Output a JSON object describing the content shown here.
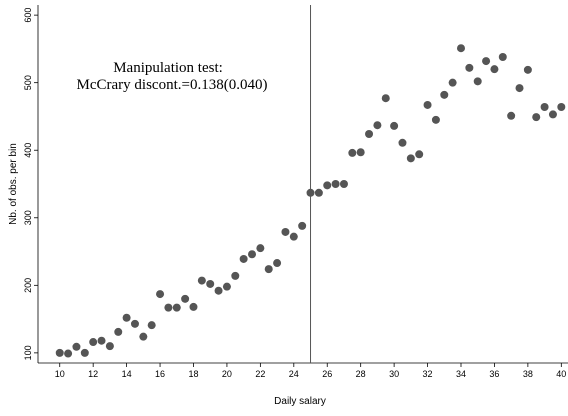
{
  "chart_data": {
    "type": "scatter",
    "x_label": "Daily salary",
    "y_label": "Nb. of obs. per bin",
    "annotation": [
      "Manipulation test:",
      "McCrary discont.=0.138(0.040)"
    ],
    "cutoff": 25,
    "color": "#555555",
    "x": [
      10,
      10.5,
      11,
      11.5,
      12,
      12.5,
      13,
      13.5,
      14,
      14.5,
      15,
      15.5,
      16,
      16.5,
      17,
      17.5,
      18,
      18.5,
      19,
      19.5,
      20,
      20.5,
      21,
      21.5,
      22,
      22.5,
      23,
      23.5,
      24,
      24.5,
      25,
      25.5,
      26,
      26.5,
      27,
      27.5,
      28,
      28.5,
      29,
      29.5,
      30,
      30.5,
      31,
      31.5,
      32,
      32.5,
      33,
      33.5,
      34,
      34.5,
      35,
      35.5,
      36,
      36.5,
      37,
      37.5,
      38,
      38.5,
      39,
      39.5,
      40
    ],
    "values": [
      100,
      99,
      109,
      100,
      116,
      118,
      110,
      131,
      152,
      143,
      124,
      141,
      187,
      167,
      167,
      180,
      168,
      207,
      202,
      192,
      198,
      214,
      239,
      246,
      255,
      224,
      233,
      279,
      272,
      288,
      337,
      337,
      348,
      350,
      350,
      396,
      397,
      424,
      437,
      477,
      436,
      411,
      388,
      394,
      467,
      445,
      482,
      500,
      551,
      522,
      502,
      532,
      520,
      538,
      451,
      492,
      519,
      449,
      464,
      453,
      464
    ],
    "xlim": [
      8.7,
      40.4
    ],
    "ylim": [
      85,
      615
    ],
    "xticks": [
      10,
      12,
      14,
      16,
      18,
      20,
      22,
      24,
      26,
      28,
      30,
      32,
      34,
      36,
      38,
      40
    ],
    "yticks": [
      100,
      200,
      300,
      400,
      500,
      600
    ]
  }
}
